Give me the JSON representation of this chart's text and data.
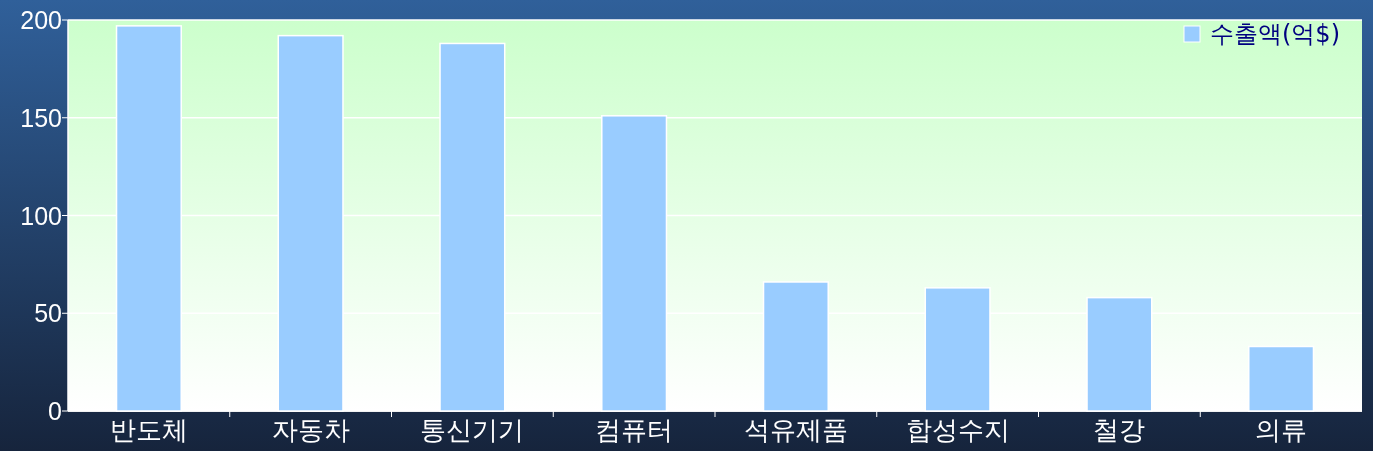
{
  "chart_data": {
    "type": "bar",
    "categories": [
      "반도체",
      "자동차",
      "통신기기",
      "컴퓨터",
      "석유제품",
      "합성수지",
      "철강",
      "의류"
    ],
    "series": [
      {
        "name": "수출액(억$)",
        "color": "#99ccff",
        "values": [
          197,
          192,
          188,
          151,
          66,
          63,
          58,
          33
        ]
      }
    ],
    "ylim": [
      0,
      200
    ],
    "yticks": [
      0,
      50,
      100,
      150,
      200
    ],
    "grid": "y",
    "legend": "top right"
  }
}
